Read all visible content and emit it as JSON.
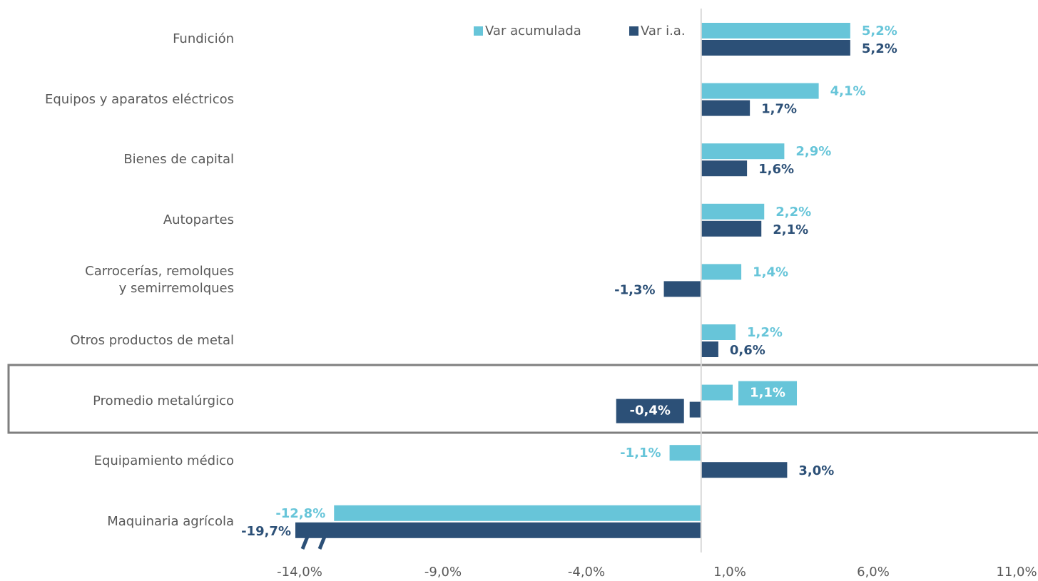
{
  "chart_data": {
    "type": "hbar",
    "categories": [
      "Fundición",
      "Equipos y aparatos eléctricos",
      "Bienes de capital",
      "Autopartes",
      "Carrocerías, remolques\ny semirremolques",
      "Otros productos de metal",
      "Promedio metalúrgico",
      "Equipamiento médico",
      "Maquinaria agrícola"
    ],
    "series": [
      {
        "name": "Var acumulada",
        "color": "#67c5d9",
        "values": [
          5.2,
          4.1,
          2.9,
          2.2,
          1.4,
          1.2,
          1.1,
          -1.1,
          -12.8
        ],
        "value_labels": [
          "5,2%",
          "4,1%",
          "2,9%",
          "2,2%",
          "1,4%",
          "1,2%",
          "1,1%",
          "-1,1%",
          "-12,8%"
        ]
      },
      {
        "name": "Var i.a.",
        "color": "#2c5077",
        "values": [
          5.2,
          1.7,
          1.6,
          2.1,
          -1.3,
          0.6,
          -0.4,
          3.0,
          -19.7
        ],
        "value_labels": [
          "5,2%",
          "1,7%",
          "1,6%",
          "2,1%",
          "-1,3%",
          "0,6%",
          "-0,4%",
          "3,0%",
          "-19,7%"
        ]
      }
    ],
    "xlim": [
      -14,
      11
    ],
    "xticks": [
      {
        "value": -14,
        "label": "-14,0%"
      },
      {
        "value": -9,
        "label": "-9,0%"
      },
      {
        "value": -4,
        "label": "-4,0%"
      },
      {
        "value": 1,
        "label": "1,0%"
      },
      {
        "value": 6,
        "label": "6,0%"
      },
      {
        "value": 11,
        "label": "11,0%"
      }
    ],
    "highlight": "Promedio metalúrgico",
    "legend": "top"
  }
}
